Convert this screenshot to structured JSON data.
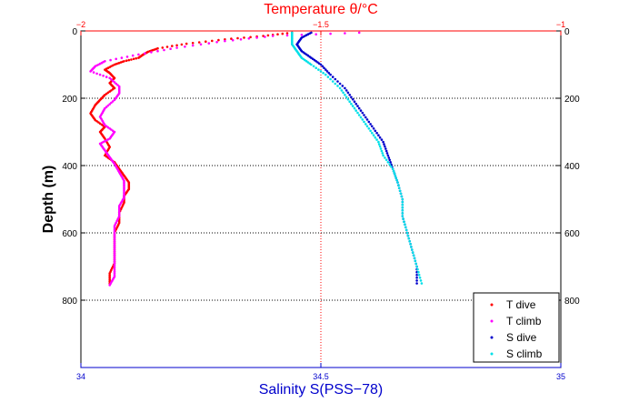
{
  "chart_data": {
    "type": "scatter",
    "top_axis": {
      "label": "Temperature θ/°C",
      "range": [
        -2,
        -1
      ],
      "ticks": [
        -2,
        -1.5,
        -1
      ],
      "tick_labels": [
        "−2",
        "−1.5",
        "−1"
      ],
      "color": "#ff0000"
    },
    "bottom_axis": {
      "label": "Salinity S(PSS−78)",
      "range": [
        34,
        35
      ],
      "ticks": [
        34,
        34.5,
        35
      ],
      "tick_labels": [
        "34",
        "34.5",
        "35"
      ],
      "color": "#0000cc"
    },
    "y_axis": {
      "label": "Depth (m)",
      "range": [
        0,
        1000
      ],
      "inverted": true,
      "ticks": [
        0,
        200,
        400,
        600,
        800
      ],
      "tick_labels": [
        "0",
        "200",
        "400",
        "600",
        "800"
      ]
    },
    "grid": true,
    "legend_position": "bottom-right",
    "series": [
      {
        "name": "T dive",
        "color": "#ff0000",
        "axis": "top",
        "points": [
          [
            -1.56,
            5
          ],
          [
            -1.62,
            15
          ],
          [
            -1.7,
            25
          ],
          [
            -1.78,
            38
          ],
          [
            -1.84,
            52
          ],
          [
            -1.86,
            62
          ],
          [
            -1.87,
            70
          ],
          [
            -1.88,
            80
          ],
          [
            -1.91,
            90
          ],
          [
            -1.93,
            100
          ],
          [
            -1.95,
            115
          ],
          [
            -1.94,
            125
          ],
          [
            -1.93,
            140
          ],
          [
            -1.94,
            155
          ],
          [
            -1.93,
            170
          ],
          [
            -1.95,
            190
          ],
          [
            -1.96,
            205
          ],
          [
            -1.97,
            220
          ],
          [
            -1.98,
            245
          ],
          [
            -1.97,
            265
          ],
          [
            -1.95,
            285
          ],
          [
            -1.96,
            300
          ],
          [
            -1.95,
            320
          ],
          [
            -1.94,
            345
          ],
          [
            -1.95,
            370
          ],
          [
            -1.93,
            390
          ],
          [
            -1.92,
            410
          ],
          [
            -1.91,
            430
          ],
          [
            -1.9,
            450
          ],
          [
            -1.9,
            470
          ],
          [
            -1.91,
            490
          ],
          [
            -1.91,
            510
          ],
          [
            -1.92,
            540
          ],
          [
            -1.92,
            570
          ],
          [
            -1.93,
            600
          ],
          [
            -1.93,
            630
          ],
          [
            -1.93,
            660
          ],
          [
            -1.93,
            690
          ],
          [
            -1.94,
            720
          ],
          [
            -1.94,
            750
          ]
        ]
      },
      {
        "name": "T climb",
        "color": "#ff00ff",
        "axis": "top",
        "points": [
          [
            -1.42,
            5
          ],
          [
            -1.6,
            15
          ],
          [
            -1.7,
            30
          ],
          [
            -1.8,
            50
          ],
          [
            -1.88,
            70
          ],
          [
            -1.95,
            90
          ],
          [
            -1.97,
            105
          ],
          [
            -1.98,
            120
          ],
          [
            -1.94,
            140
          ],
          [
            -1.92,
            165
          ],
          [
            -1.92,
            185
          ],
          [
            -1.93,
            205
          ],
          [
            -1.95,
            230
          ],
          [
            -1.96,
            255
          ],
          [
            -1.95,
            280
          ],
          [
            -1.93,
            300
          ],
          [
            -1.94,
            320
          ],
          [
            -1.96,
            335
          ],
          [
            -1.95,
            355
          ],
          [
            -1.94,
            375
          ],
          [
            -1.93,
            395
          ],
          [
            -1.92,
            420
          ],
          [
            -1.91,
            445
          ],
          [
            -1.91,
            470
          ],
          [
            -1.91,
            495
          ],
          [
            -1.92,
            520
          ],
          [
            -1.92,
            550
          ],
          [
            -1.93,
            580
          ],
          [
            -1.93,
            610
          ],
          [
            -1.93,
            640
          ],
          [
            -1.93,
            670
          ],
          [
            -1.93,
            700
          ],
          [
            -1.93,
            730
          ],
          [
            -1.94,
            755
          ]
        ]
      },
      {
        "name": "S dive",
        "color": "#0000cc",
        "axis": "bottom",
        "points": [
          [
            34.48,
            5
          ],
          [
            34.46,
            20
          ],
          [
            34.45,
            40
          ],
          [
            34.46,
            60
          ],
          [
            34.48,
            80
          ],
          [
            34.5,
            100
          ],
          [
            34.52,
            130
          ],
          [
            34.55,
            170
          ],
          [
            34.57,
            210
          ],
          [
            34.59,
            250
          ],
          [
            34.61,
            290
          ],
          [
            34.63,
            330
          ],
          [
            34.64,
            370
          ],
          [
            34.65,
            410
          ],
          [
            34.66,
            450
          ],
          [
            34.67,
            500
          ],
          [
            34.67,
            550
          ],
          [
            34.68,
            600
          ],
          [
            34.69,
            650
          ],
          [
            34.7,
            700
          ],
          [
            34.7,
            750
          ]
        ]
      },
      {
        "name": "S climb",
        "color": "#00e0e8",
        "axis": "bottom",
        "points": [
          [
            34.44,
            5
          ],
          [
            34.44,
            20
          ],
          [
            34.44,
            40
          ],
          [
            34.45,
            60
          ],
          [
            34.46,
            80
          ],
          [
            34.48,
            100
          ],
          [
            34.51,
            130
          ],
          [
            34.54,
            170
          ],
          [
            34.56,
            210
          ],
          [
            34.58,
            250
          ],
          [
            34.6,
            290
          ],
          [
            34.62,
            330
          ],
          [
            34.63,
            370
          ],
          [
            34.65,
            410
          ],
          [
            34.66,
            450
          ],
          [
            34.67,
            500
          ],
          [
            34.67,
            550
          ],
          [
            34.68,
            600
          ],
          [
            34.69,
            650
          ],
          [
            34.7,
            700
          ],
          [
            34.71,
            750
          ]
        ]
      }
    ]
  }
}
